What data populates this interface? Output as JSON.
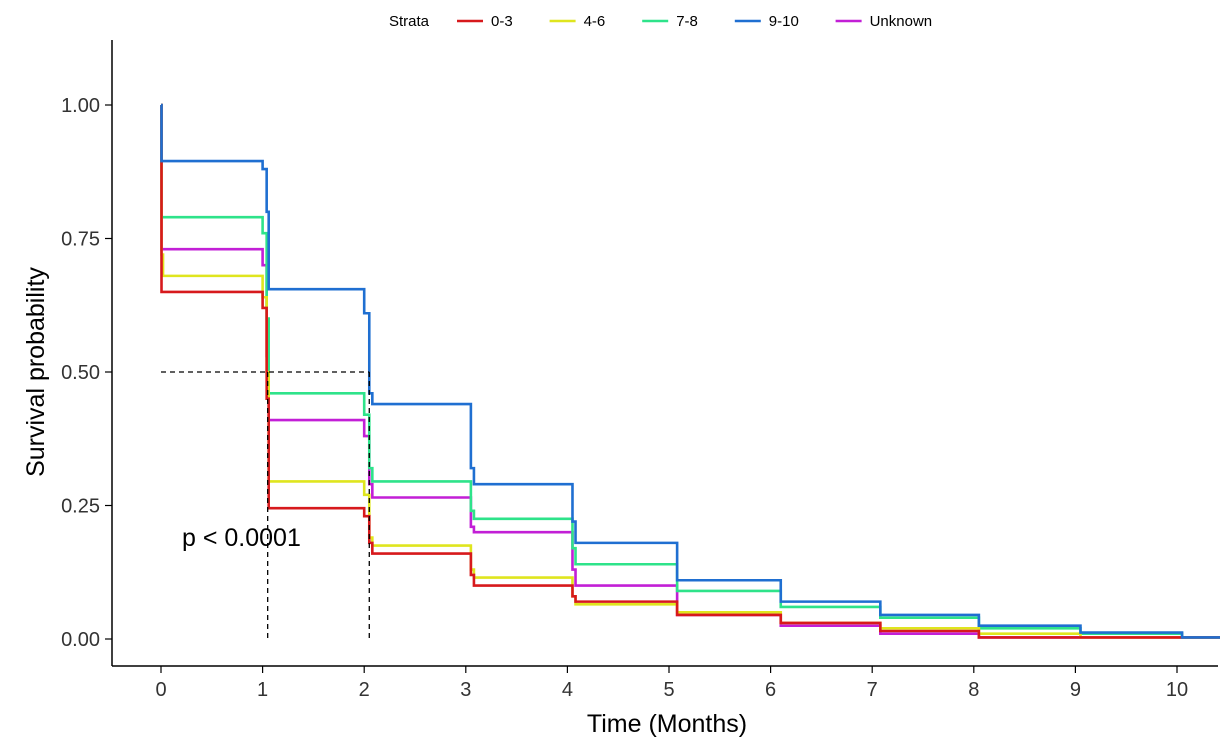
{
  "chart_data": {
    "type": "line",
    "subtype": "kaplan-meier step",
    "xlabel": "Time (Months)",
    "ylabel": "Survival probability",
    "xlim": [
      0,
      10.6
    ],
    "ylim": [
      0,
      1
    ],
    "xticks": [
      "0",
      "1",
      "2",
      "3",
      "4",
      "5",
      "6",
      "7",
      "8",
      "9",
      "10"
    ],
    "yticks": [
      "0.00",
      "0.25",
      "0.50",
      "0.75",
      "1.00"
    ],
    "grid": false,
    "legend": {
      "title": "Strata",
      "placement": "top"
    },
    "annotation": "p < 0.0001",
    "median_reference": {
      "y": 0.5,
      "x": [
        1.05,
        2.05
      ]
    },
    "series": [
      {
        "name": "0-3",
        "color": "#d7191c",
        "points": [
          [
            0,
            1
          ],
          [
            0.005,
            0.65
          ],
          [
            0.98,
            0.65
          ],
          [
            1.0,
            0.62
          ],
          [
            1.04,
            0.45
          ],
          [
            1.06,
            0.245
          ],
          [
            1.97,
            0.245
          ],
          [
            2.0,
            0.23
          ],
          [
            2.05,
            0.18
          ],
          [
            2.08,
            0.16
          ],
          [
            3.0,
            0.16
          ],
          [
            3.05,
            0.12
          ],
          [
            3.08,
            0.1
          ],
          [
            4.0,
            0.1
          ],
          [
            4.05,
            0.08
          ],
          [
            4.08,
            0.07
          ],
          [
            5.0,
            0.07
          ],
          [
            5.08,
            0.045
          ],
          [
            6.0,
            0.045
          ],
          [
            6.1,
            0.03
          ],
          [
            7.0,
            0.03
          ],
          [
            7.08,
            0.015
          ],
          [
            8.0,
            0.015
          ],
          [
            8.05,
            0.003
          ],
          [
            10.6,
            0.003
          ]
        ]
      },
      {
        "name": "4-6",
        "color": "#dfe51e",
        "points": [
          [
            0,
            1
          ],
          [
            0.005,
            0.72
          ],
          [
            0.02,
            0.68
          ],
          [
            0.98,
            0.68
          ],
          [
            1.0,
            0.64
          ],
          [
            1.04,
            0.5
          ],
          [
            1.06,
            0.295
          ],
          [
            1.97,
            0.295
          ],
          [
            2.0,
            0.27
          ],
          [
            2.05,
            0.19
          ],
          [
            2.08,
            0.175
          ],
          [
            3.0,
            0.175
          ],
          [
            3.05,
            0.13
          ],
          [
            3.08,
            0.115
          ],
          [
            4.0,
            0.115
          ],
          [
            4.05,
            0.08
          ],
          [
            4.08,
            0.065
          ],
          [
            5.0,
            0.065
          ],
          [
            5.08,
            0.05
          ],
          [
            6.0,
            0.05
          ],
          [
            6.1,
            0.03
          ],
          [
            7.0,
            0.03
          ],
          [
            7.08,
            0.02
          ],
          [
            8.0,
            0.02
          ],
          [
            8.05,
            0.01
          ],
          [
            9.0,
            0.01
          ],
          [
            9.05,
            0.003
          ],
          [
            10.6,
            0.003
          ]
        ]
      },
      {
        "name": "7-8",
        "color": "#2ee38a",
        "points": [
          [
            0,
            1
          ],
          [
            0.005,
            0.79
          ],
          [
            0.98,
            0.79
          ],
          [
            1.0,
            0.76
          ],
          [
            1.04,
            0.6
          ],
          [
            1.06,
            0.46
          ],
          [
            1.97,
            0.46
          ],
          [
            2.0,
            0.42
          ],
          [
            2.05,
            0.32
          ],
          [
            2.08,
            0.295
          ],
          [
            3.0,
            0.295
          ],
          [
            3.05,
            0.24
          ],
          [
            3.08,
            0.225
          ],
          [
            4.0,
            0.225
          ],
          [
            4.05,
            0.17
          ],
          [
            4.08,
            0.14
          ],
          [
            5.0,
            0.14
          ],
          [
            5.08,
            0.09
          ],
          [
            6.0,
            0.09
          ],
          [
            6.1,
            0.06
          ],
          [
            7.0,
            0.06
          ],
          [
            7.08,
            0.04
          ],
          [
            8.0,
            0.04
          ],
          [
            8.05,
            0.02
          ],
          [
            9.0,
            0.02
          ],
          [
            9.05,
            0.01
          ],
          [
            10.0,
            0.01
          ],
          [
            10.05,
            0.003
          ],
          [
            10.6,
            0.003
          ]
        ]
      },
      {
        "name": "9-10",
        "color": "#1f6fd1",
        "points": [
          [
            0,
            1
          ],
          [
            0.005,
            0.895
          ],
          [
            0.98,
            0.895
          ],
          [
            1.0,
            0.88
          ],
          [
            1.04,
            0.8
          ],
          [
            1.06,
            0.655
          ],
          [
            1.97,
            0.655
          ],
          [
            2.0,
            0.61
          ],
          [
            2.05,
            0.46
          ],
          [
            2.08,
            0.44
          ],
          [
            3.0,
            0.44
          ],
          [
            3.05,
            0.32
          ],
          [
            3.08,
            0.29
          ],
          [
            4.0,
            0.29
          ],
          [
            4.05,
            0.22
          ],
          [
            4.08,
            0.18
          ],
          [
            5.0,
            0.18
          ],
          [
            5.08,
            0.11
          ],
          [
            6.0,
            0.11
          ],
          [
            6.1,
            0.07
          ],
          [
            7.0,
            0.07
          ],
          [
            7.08,
            0.045
          ],
          [
            8.0,
            0.045
          ],
          [
            8.05,
            0.025
          ],
          [
            9.0,
            0.025
          ],
          [
            9.05,
            0.012
          ],
          [
            10.0,
            0.012
          ],
          [
            10.05,
            0.003
          ],
          [
            10.6,
            0.003
          ]
        ]
      },
      {
        "name": "Unknown",
        "color": "#c21fd6",
        "points": [
          [
            0,
            1
          ],
          [
            0.005,
            0.73
          ],
          [
            0.98,
            0.73
          ],
          [
            1.0,
            0.7
          ],
          [
            1.04,
            0.53
          ],
          [
            1.06,
            0.41
          ],
          [
            1.97,
            0.41
          ],
          [
            2.0,
            0.38
          ],
          [
            2.05,
            0.29
          ],
          [
            2.08,
            0.265
          ],
          [
            3.0,
            0.265
          ],
          [
            3.05,
            0.21
          ],
          [
            3.08,
            0.2
          ],
          [
            4.0,
            0.2
          ],
          [
            4.05,
            0.13
          ],
          [
            4.08,
            0.1
          ],
          [
            5.0,
            0.1
          ],
          [
            5.08,
            0.045
          ],
          [
            6.0,
            0.045
          ],
          [
            6.1,
            0.025
          ],
          [
            7.0,
            0.025
          ],
          [
            7.08,
            0.01
          ],
          [
            8.0,
            0.01
          ],
          [
            8.05,
            0.003
          ],
          [
            10.6,
            0.003
          ]
        ]
      }
    ]
  }
}
